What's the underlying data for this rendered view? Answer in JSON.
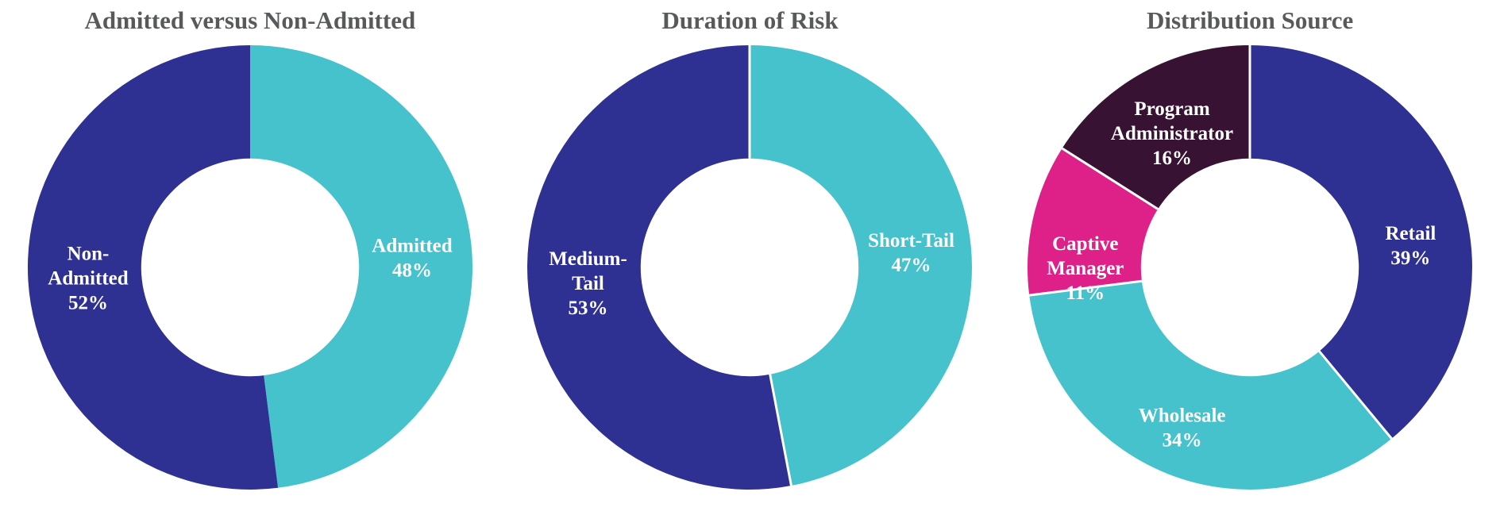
{
  "page": {
    "background": "#FFFFFF",
    "title_color": "#58595B",
    "slice_label_color": "#FFFFFF",
    "separator_color": "#FFFFFF"
  },
  "chart_data": [
    {
      "type": "pie",
      "subtype": "donut",
      "title": "Admitted versus Non-Admitted",
      "categories": [
        "Admitted",
        "Non-Admitted"
      ],
      "values": [
        48,
        52
      ],
      "unit": "%",
      "colors": [
        "#45C2CC",
        "#2E3192"
      ],
      "slice_labels": [
        [
          "Admitted",
          "48%"
        ],
        [
          "Non-",
          "Admitted",
          "52%"
        ]
      ],
      "start_angle_deg": 0,
      "direction": "clockwise",
      "hole_ratio": 0.49,
      "separator_width": 0,
      "legend": "none",
      "label_positions": [
        {
          "angle_deg": 86.4,
          "radius_ratio": 0.73
        },
        {
          "angle_deg": 266.4,
          "radius_ratio": 0.73
        }
      ]
    },
    {
      "type": "pie",
      "subtype": "donut",
      "title": "Duration of Risk",
      "categories": [
        "Short-Tail",
        "Medium-Tail"
      ],
      "values": [
        47,
        53
      ],
      "unit": "%",
      "colors": [
        "#45C2CC",
        "#2E3192"
      ],
      "slice_labels": [
        [
          "Short-Tail",
          "47%"
        ],
        [
          "Medium-",
          "Tail",
          "53%"
        ]
      ],
      "start_angle_deg": 0,
      "direction": "clockwise",
      "hole_ratio": 0.49,
      "separator_width": 3,
      "legend": "none",
      "label_positions": [
        {
          "angle_deg": 84.6,
          "radius_ratio": 0.73
        },
        {
          "angle_deg": 264.6,
          "radius_ratio": 0.73
        }
      ]
    },
    {
      "type": "pie",
      "subtype": "donut",
      "title": "Distribution Source",
      "categories": [
        "Retail",
        "Wholesale",
        "Captive Manager",
        "Program Administrator"
      ],
      "values": [
        39,
        34,
        11,
        16
      ],
      "unit": "%",
      "colors": [
        "#2E3192",
        "#45C2CC",
        "#DE2189",
        "#381232"
      ],
      "slice_labels": [
        [
          "Retail",
          "39%"
        ],
        [
          "Wholesale",
          "34%"
        ],
        [
          "Captive",
          "Manager",
          "11%"
        ],
        [
          "Program",
          "Administrator",
          "16%"
        ]
      ],
      "start_angle_deg": 0,
      "direction": "clockwise",
      "hole_ratio": 0.49,
      "separator_width": 3,
      "legend": "none",
      "label_positions": [
        {
          "angle_deg": 82.0,
          "radius_ratio": 0.73
        },
        {
          "angle_deg": 203.0,
          "radius_ratio": 0.78
        },
        {
          "angle_deg": 270.0,
          "radius_ratio": 0.74
        },
        {
          "angle_deg": 330.0,
          "radius_ratio": 0.7
        }
      ]
    }
  ]
}
